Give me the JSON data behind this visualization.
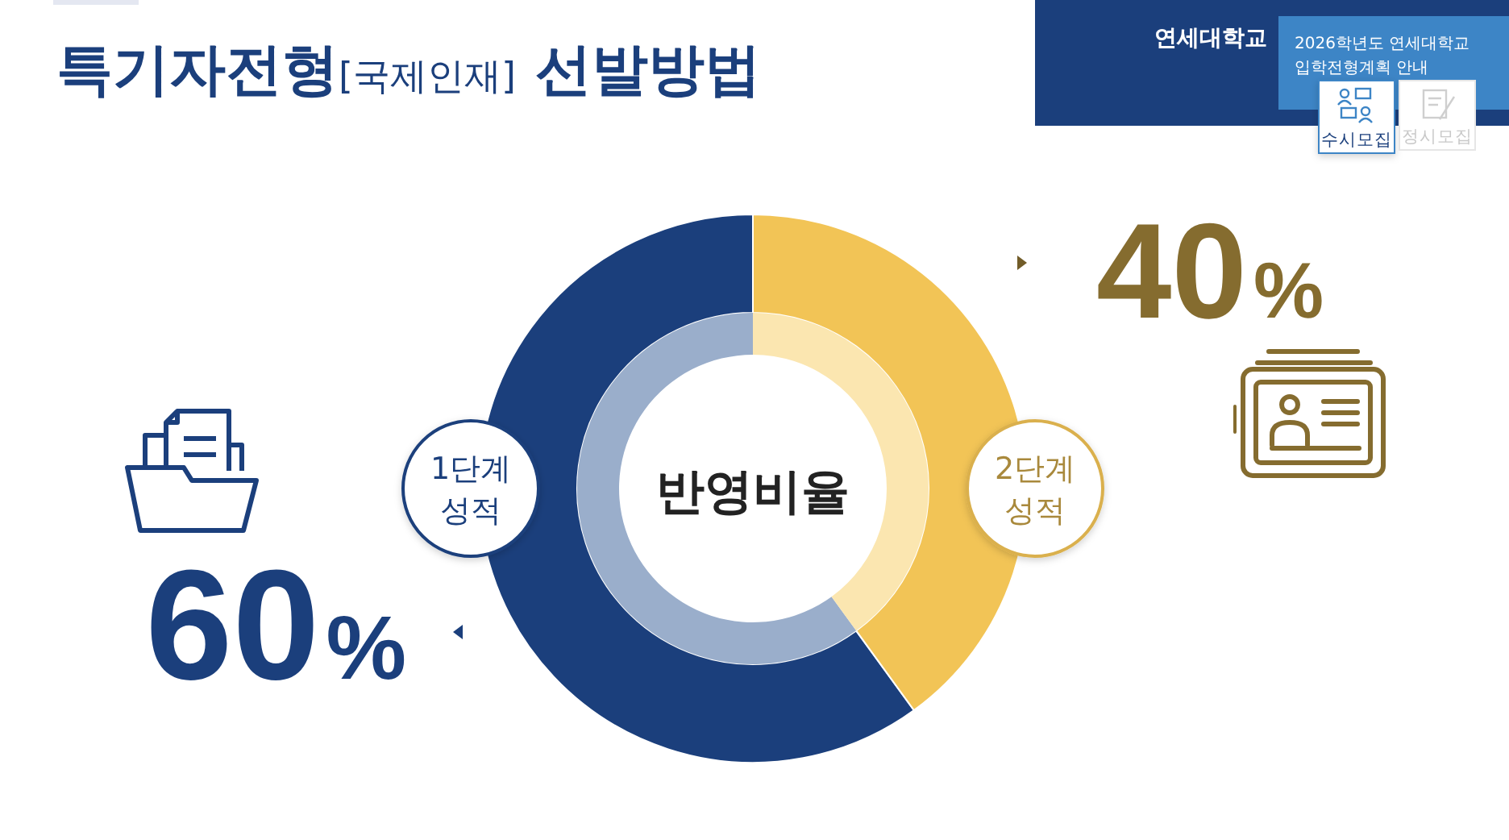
{
  "chart_data": {
    "type": "donut",
    "title": "특기자전형[국제인재] 선발방법",
    "categories": [
      "1단계 성적",
      "2단계 성적"
    ],
    "series": [
      {
        "values": [
          60,
          40
        ],
        "colors": [
          "#1b3f7c",
          "#f2c456"
        ],
        "value_labels": [
          "60%",
          "40%"
        ]
      },
      {
        "values": [
          60,
          40
        ],
        "colors": [
          "#9aaecb",
          "#fbe6b0"
        ]
      }
    ],
    "annotations": [
      "반영비율",
      "연세대학교",
      "2026학년도 연세대학교 입학전형계획 안내",
      "수시모집",
      "정시모집"
    ]
  }
}
